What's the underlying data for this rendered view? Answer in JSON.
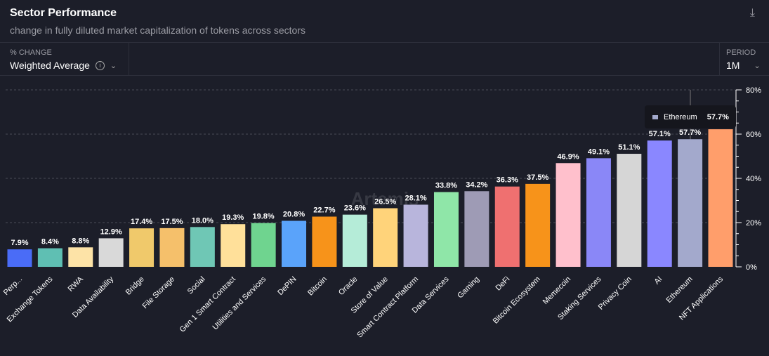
{
  "header": {
    "title": "Sector Performance",
    "subtitle": "change in fully diluted market capitalization of tokens across sectors",
    "download_icon": "download-icon"
  },
  "controls": {
    "change_label": "% CHANGE",
    "change_value": "Weighted Average",
    "period_label": "PERIOD",
    "period_value": "1M"
  },
  "tooltip": {
    "name": "Ethereum",
    "value": "57.7%",
    "color": "#a3a9cc"
  },
  "watermark": "Artemis",
  "chart_data": {
    "type": "bar",
    "title": "Sector Performance",
    "ylim": [
      0,
      80
    ],
    "yticks": [
      "0%",
      "20%",
      "40%",
      "60%",
      "80%"
    ],
    "grid": true,
    "categories": [
      "Perp...",
      "Exchange Tokens",
      "RWA",
      "Data Availability",
      "Bridge",
      "File Storage",
      "Social",
      "Gen 1 Smart Contract",
      "Utilities and Services",
      "DePIN",
      "Bitcoin",
      "Oracle",
      "Store of Value",
      "Smart Contract Platform",
      "Data Services",
      "Gaming",
      "DeFi",
      "Bitcoin Ecosystem",
      "Memecoin",
      "Staking Services",
      "Privacy Coin",
      "AI",
      "Ethereum",
      "NFT Applications"
    ],
    "values": [
      7.9,
      8.4,
      8.8,
      12.9,
      17.4,
      17.5,
      18.0,
      19.3,
      19.8,
      20.8,
      22.7,
      23.6,
      26.5,
      28.1,
      33.8,
      34.2,
      36.3,
      37.5,
      46.9,
      49.1,
      51.1,
      57.1,
      57.7,
      62.2
    ],
    "colors": [
      "#4a6cf7",
      "#5fbfb3",
      "#fde3a7",
      "#d9d9d9",
      "#f0c96b",
      "#f5c06b",
      "#6fc7b5",
      "#ffe09a",
      "#6fd48f",
      "#5aa3fa",
      "#f7931a",
      "#b5ecd8",
      "#ffd37a",
      "#b8b5dc",
      "#8fe6a8",
      "#9e9bb5",
      "#ef7070",
      "#f7931a",
      "#ffc0cc",
      "#8a87f7",
      "#d6d6d6",
      "#8a87ff",
      "#a3a9cc",
      "#ff9e6b"
    ]
  }
}
